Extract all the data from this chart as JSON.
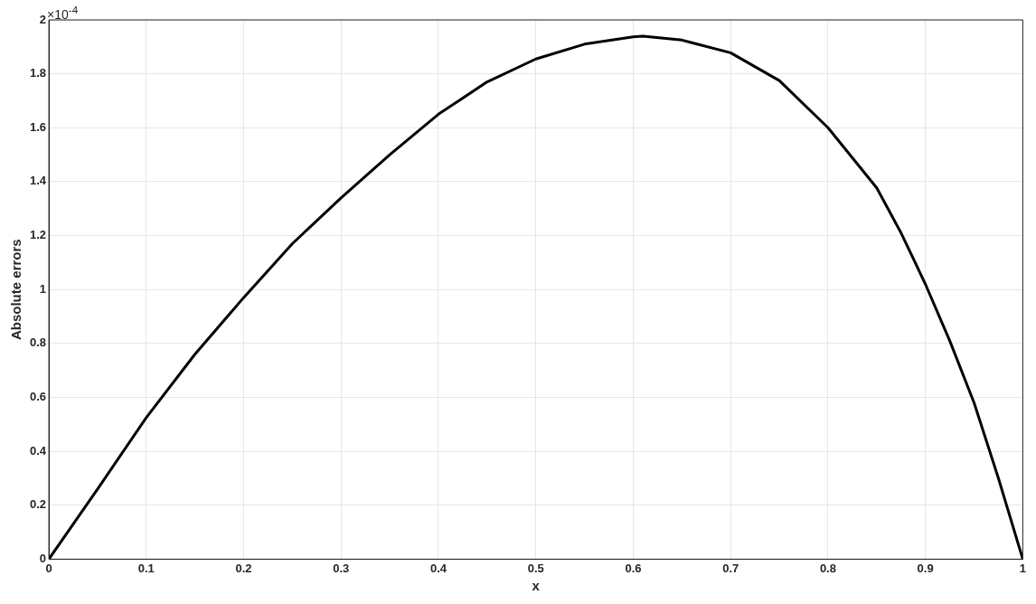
{
  "chart_data": {
    "type": "line",
    "xlabel": "x",
    "ylabel": "Absolute errors",
    "annotations": [
      "×10$^{-4}$"
    ],
    "x": [
      0,
      0.05,
      0.1,
      0.15,
      0.2,
      0.25,
      0.3,
      0.35,
      0.4,
      0.45,
      0.5,
      0.55,
      0.6,
      0.61,
      0.65,
      0.7,
      0.75,
      0.8,
      0.85,
      0.875,
      0.9,
      0.925,
      0.95,
      0.975,
      1
    ],
    "series": [
      {
        "color": "#000000",
        "values": [
          0,
          0.26,
          0.525,
          0.76,
          0.97,
          1.17,
          1.34,
          1.5,
          1.65,
          1.77,
          1.855,
          1.91,
          1.937,
          1.94,
          1.925,
          1.878,
          1.775,
          1.6,
          1.377,
          1.21,
          1.02,
          0.81,
          0.58,
          0.3,
          0
        ]
      }
    ],
    "xlim": [
      0,
      1
    ],
    "xticks": [
      0,
      0.1,
      0.2,
      0.3,
      0.4,
      0.5,
      0.6,
      0.7,
      0.8,
      0.9,
      1
    ],
    "ylim": [
      0,
      2
    ],
    "yticks": [
      0,
      0.2,
      0.4,
      0.6,
      0.8,
      1,
      1.2,
      1.4,
      1.6,
      1.8,
      2
    ],
    "grid": true,
    "marker": "none",
    "line_style": "solid"
  }
}
